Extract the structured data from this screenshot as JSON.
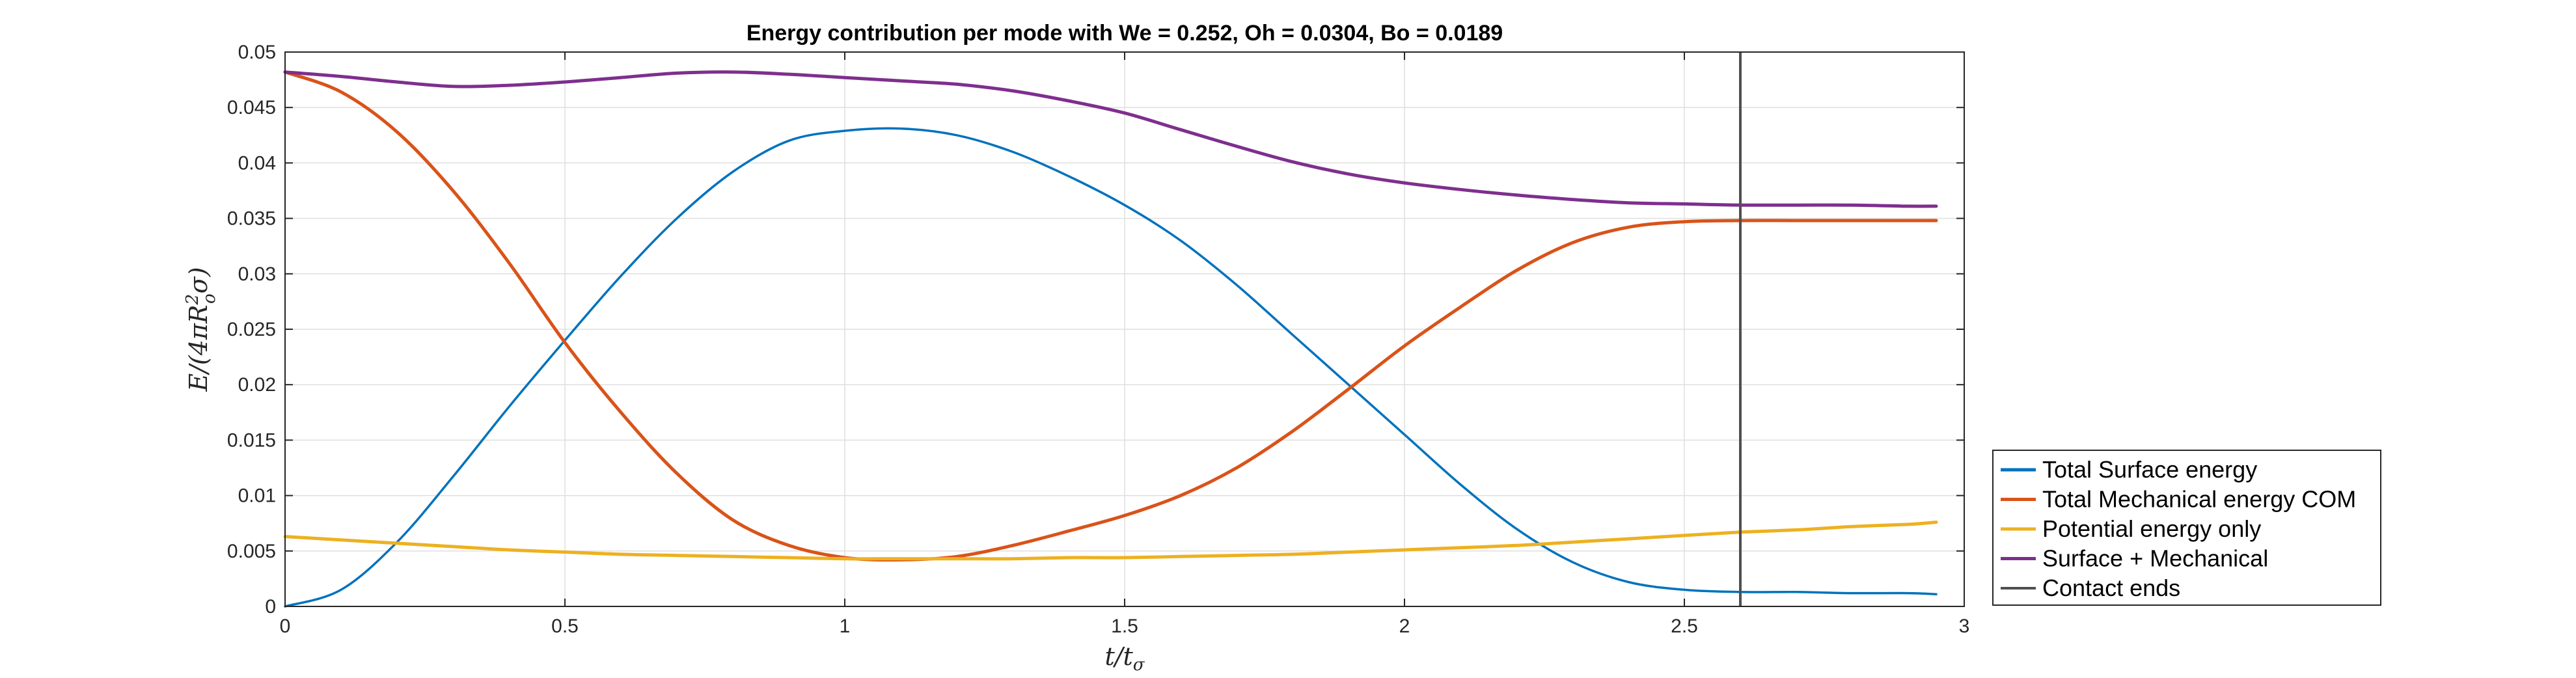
{
  "chart_data": {
    "type": "line",
    "title": "Energy contribution per mode with We = 0.252, Oh = 0.0304, Bo = 0.0189",
    "xlabel": "t/tσ",
    "ylabel": "E/(4πRo²σ)",
    "xlim": [
      0,
      3
    ],
    "ylim": [
      0,
      0.05
    ],
    "xticks": [
      0,
      0.5,
      1,
      1.5,
      2,
      2.5,
      3
    ],
    "xtick_labels": [
      "0",
      "0.5",
      "1",
      "1.5",
      "2",
      "2.5",
      "3"
    ],
    "yticks": [
      0,
      0.005,
      0.01,
      0.015,
      0.02,
      0.025,
      0.03,
      0.035,
      0.04,
      0.045,
      0.05
    ],
    "ytick_labels": [
      "0",
      "0.005",
      "0.01",
      "0.015",
      "0.02",
      "0.025",
      "0.03",
      "0.035",
      "0.04",
      "0.045",
      "0.05"
    ],
    "grid": true,
    "legend_position": "outside right, bottom",
    "x": [
      0,
      0.1,
      0.2,
      0.3,
      0.4,
      0.5,
      0.6,
      0.7,
      0.8,
      0.9,
      1.0,
      1.1,
      1.2,
      1.3,
      1.4,
      1.5,
      1.6,
      1.7,
      1.8,
      1.9,
      2.0,
      2.1,
      2.2,
      2.3,
      2.4,
      2.5,
      2.6,
      2.7,
      2.8,
      2.9,
      2.95
    ],
    "series": [
      {
        "name": "Total Surface energy",
        "color": "#0072BD",
        "values": [
          0,
          0.0015,
          0.0058,
          0.0117,
          0.018,
          0.024,
          0.0298,
          0.035,
          0.0392,
          0.042,
          0.0429,
          0.0431,
          0.0425,
          0.041,
          0.0388,
          0.0362,
          0.033,
          0.029,
          0.0245,
          0.02,
          0.0155,
          0.011,
          0.007,
          0.004,
          0.0022,
          0.0015,
          0.0013,
          0.0013,
          0.0012,
          0.0012,
          0.0011
        ]
      },
      {
        "name": "Total Mechanical energy COM",
        "color": "#D95319",
        "values": [
          0.0482,
          0.0464,
          0.0428,
          0.0375,
          0.031,
          0.0238,
          0.0175,
          0.012,
          0.0078,
          0.0055,
          0.0044,
          0.0042,
          0.0045,
          0.0055,
          0.0068,
          0.0082,
          0.01,
          0.0125,
          0.0158,
          0.0196,
          0.0235,
          0.027,
          0.0303,
          0.0328,
          0.0342,
          0.0347,
          0.0348,
          0.0348,
          0.0348,
          0.0348,
          0.0348
        ]
      },
      {
        "name": "Potential energy only",
        "color": "#EDB120",
        "values": [
          0.0063,
          0.006,
          0.0057,
          0.0054,
          0.0051,
          0.0049,
          0.0047,
          0.0046,
          0.0045,
          0.0044,
          0.0043,
          0.0043,
          0.0043,
          0.0043,
          0.0044,
          0.0044,
          0.0045,
          0.0046,
          0.0047,
          0.0049,
          0.0051,
          0.0053,
          0.0055,
          0.0058,
          0.0061,
          0.0064,
          0.0067,
          0.0069,
          0.0072,
          0.0074,
          0.0076
        ]
      },
      {
        "name": "Surface + Mechanical",
        "color": "#7E2F8E",
        "values": [
          0.0482,
          0.0478,
          0.0473,
          0.0469,
          0.047,
          0.0473,
          0.0477,
          0.0481,
          0.0482,
          0.048,
          0.0477,
          0.0474,
          0.0471,
          0.0465,
          0.0456,
          0.0445,
          0.043,
          0.0415,
          0.0401,
          0.039,
          0.0382,
          0.0376,
          0.0371,
          0.0367,
          0.0364,
          0.0363,
          0.0362,
          0.0362,
          0.0362,
          0.0361,
          0.0361
        ]
      }
    ],
    "vlines": [
      {
        "name": "Contact ends",
        "color": "#505050",
        "x": 2.6
      }
    ]
  }
}
